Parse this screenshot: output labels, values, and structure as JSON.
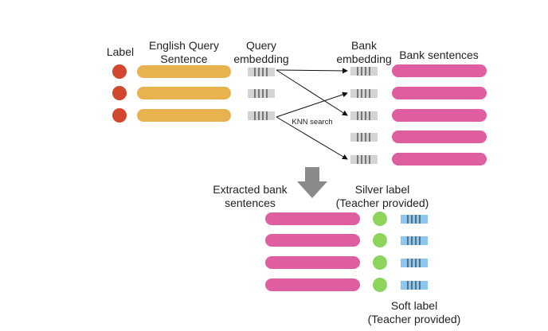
{
  "headers": {
    "label": "Label",
    "query_sentence": [
      "English Query",
      "Sentence"
    ],
    "query_embedding": [
      "Query",
      "embedding"
    ],
    "bank_embedding": [
      "Bank",
      "embedding"
    ],
    "bank_sentences": "Bank sentences",
    "knn": "KNN search",
    "extracted": [
      "Extracted bank",
      "sentences"
    ],
    "silver": [
      "Silver label",
      "(Teacher provided)"
    ],
    "soft": [
      "Soft label",
      "(Teacher provided)"
    ]
  },
  "colors": {
    "label_dot": "#d2472d",
    "query_bar": "#e8b34f",
    "embedding": "#d4d4d4",
    "bank_bar": "#de5e9f",
    "silver_dot": "#8cd45b",
    "soft_embedding": "#8ec7ee",
    "arrow_down": "#8a8a8a"
  },
  "counts": {
    "query_rows": 3,
    "bank_rows": 5,
    "extracted_rows": 4
  },
  "knn_edges": [
    [
      0,
      0
    ],
    [
      0,
      2
    ],
    [
      2,
      1
    ],
    [
      2,
      4
    ]
  ]
}
